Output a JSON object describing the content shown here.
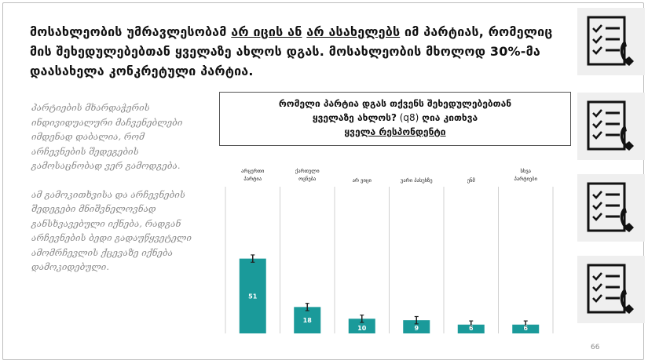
{
  "headline": {
    "part1": "მოსახლეობის უმრავლესობამ ",
    "u1": "არ იცის ან",
    "part2": " ",
    "u2": "არ ასახელებს",
    "part3": " იმ პარტიას, რომელიც მის შეხედულებებთან ყველაზე ახლოს დგას. მოსახლეობის მხოლოდ 30%-მა დაასახელა კონკრეტული პარტია."
  },
  "sidebar": {
    "paragraph1": "პარტიების მხარდაჭერის ინდივიდუალური მაჩვენებლები იმდენად დაბალია, რომ არჩევნების შედეგების გამოსაცნობად ვერ გამოდგება.",
    "paragraph2": "ამ გამოკითხვისა და არჩევნების შედეგები მნიშვნელოვნად განსხვავებული იქნება, რადგან არჩევნების ბედი გადაუწყვეტელი ამომრჩევლის ქცევაზე იქნება დამოკიდებული."
  },
  "question": {
    "line1": "რომელი პარტია დგას თქვენს შეხედულებებთან",
    "line2_bold": "ყველაზე ახლოს?",
    "line2_code": " (q8) ",
    "line2_rest": "ღია კითხვა",
    "line3": "ყველა რესპონდენტი"
  },
  "page_number": "66",
  "icons": [
    "checklist-phone-icon",
    "checklist-phone-icon",
    "checklist-phone-icon",
    "checklist-phone-icon"
  ],
  "colors": {
    "bar": "#1a9a9a",
    "error": "#222222",
    "divider": "#d0d0d0"
  },
  "chart_data": {
    "type": "bar",
    "categories": [
      "არცერთი პარტია",
      "ქართული ოცნება",
      "არ ვიცი",
      "უარი პასუხზე",
      "ენმ",
      "სხვა პარტიები"
    ],
    "values": [
      51,
      18,
      10,
      9,
      6,
      6
    ],
    "error_bars": true,
    "legend": "none"
  }
}
